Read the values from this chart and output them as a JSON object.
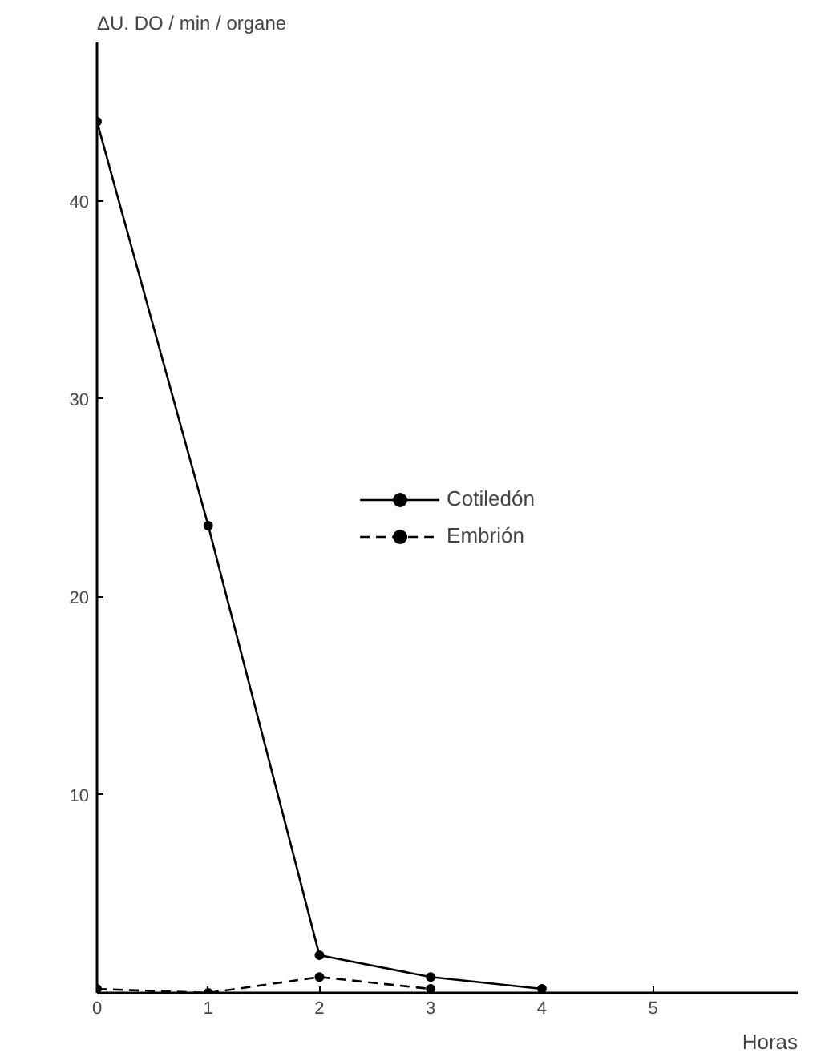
{
  "chart_data": {
    "type": "line",
    "xlabel": "Horas",
    "ylabel": "ΔU. DO / min / organe",
    "x": [
      0,
      1,
      2,
      3,
      4
    ],
    "series": [
      {
        "name": "Cotiledón",
        "color": "#000000",
        "values": [
          44,
          23.6,
          1.9,
          0.8,
          0.2
        ],
        "line_style": "solid"
      },
      {
        "name": "Embrión",
        "color": "#000000",
        "values": [
          0.2,
          0,
          0.8,
          0.2,
          null
        ],
        "line_style": "dashed"
      }
    ],
    "xlim": [
      0,
      6.3
    ],
    "ylim": [
      0,
      48
    ],
    "xticks": [
      0,
      1,
      2,
      3,
      4,
      5
    ],
    "yticks": [
      10,
      20,
      30,
      40
    ],
    "grid": false,
    "legend": "center",
    "marker": "circle"
  }
}
